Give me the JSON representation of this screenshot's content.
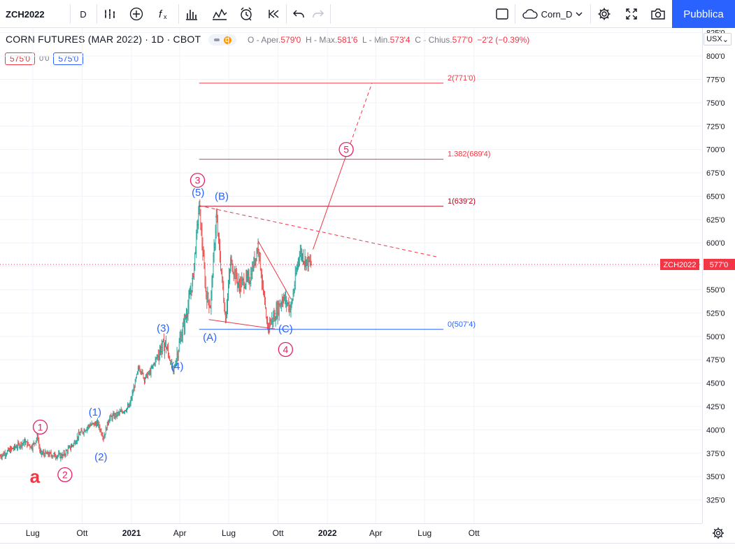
{
  "toolbar": {
    "symbol": "ZCH2022",
    "interval": "D",
    "layout_name": "Corn_D",
    "publish_label": "Pubblica",
    "icons": [
      "indicators-compare-icon",
      "add-symbol-icon",
      "fx-indicators-icon",
      "bar-style-icon",
      "templates-icon",
      "alert-icon",
      "replay-icon",
      "undo-icon",
      "redo-icon",
      "fullscreen-window-icon",
      "cloud-layout-icon",
      "settings-gear-icon",
      "fullscreen-icon",
      "camera-snapshot-icon"
    ]
  },
  "legend": {
    "title": "CORN FUTURES (MAR 2022) · 1D · CBOT",
    "badge_icon": "data-delayed-icon",
    "badge_letter": "D",
    "ohlc": [
      {
        "label": "O - Aper.",
        "value": "579'0"
      },
      {
        "label": "H - Max.",
        "value": "581'6"
      },
      {
        "label": "L - Min.",
        "value": "573'4"
      },
      {
        "label": "C - Chius.",
        "value": "577'0"
      }
    ],
    "change": "−2'2 (−0.39%)",
    "sell_price": "575'0",
    "spread": "0'0",
    "buy_price": "575'0"
  },
  "price_scale": {
    "currency": "USX",
    "ticks": [
      "825'0",
      "800'0",
      "775'0",
      "750'0",
      "725'0",
      "700'0",
      "675'0",
      "650'0",
      "625'0",
      "600'0",
      "575'0",
      "550'0",
      "525'0",
      "500'0",
      "475'0",
      "450'0",
      "425'0",
      "400'0",
      "375'0",
      "350'0",
      "325'0"
    ],
    "current_symbol": "ZCH2022",
    "current_price": "577'0"
  },
  "time_scale": {
    "labels": [
      "Lug",
      "Ott",
      "2021",
      "Apr",
      "Lug",
      "Ott",
      "2022",
      "Apr",
      "Lug",
      "Ott"
    ]
  },
  "chart_data": {
    "type": "ohlc-bar",
    "symbol": "ZCH2022",
    "ylim": [
      300,
      830
    ],
    "xlim": [
      "2020-05-01",
      "2023-11-30"
    ],
    "last_close": 577.0,
    "price_path": [
      [
        "2020-05-01",
        372
      ],
      [
        "2020-05-25",
        380
      ],
      [
        "2020-06-15",
        387
      ],
      [
        "2020-06-30",
        382
      ],
      [
        "2020-07-10",
        393
      ],
      [
        "2020-07-15",
        375
      ],
      [
        "2020-08-10",
        373
      ],
      [
        "2020-08-25",
        372
      ],
      [
        "2020-09-15",
        385
      ],
      [
        "2020-09-25",
        395
      ],
      [
        "2020-10-15",
        405
      ],
      [
        "2020-10-30",
        407
      ],
      [
        "2020-11-10",
        392
      ],
      [
        "2020-11-20",
        412
      ],
      [
        "2020-12-10",
        418
      ],
      [
        "2020-12-28",
        425
      ],
      [
        "2021-01-15",
        468
      ],
      [
        "2021-01-25",
        455
      ],
      [
        "2021-02-05",
        462
      ],
      [
        "2021-02-25",
        488
      ],
      [
        "2021-03-05",
        492
      ],
      [
        "2021-03-20",
        462
      ],
      [
        "2021-04-01",
        495
      ],
      [
        "2021-04-15",
        528
      ],
      [
        "2021-04-25",
        560
      ],
      [
        "2021-05-07",
        640
      ],
      [
        "2021-05-20",
        545
      ],
      [
        "2021-05-28",
        533
      ],
      [
        "2021-06-08",
        628
      ],
      [
        "2021-06-25",
        520
      ],
      [
        "2021-07-05",
        580
      ],
      [
        "2021-07-20",
        555
      ],
      [
        "2021-08-10",
        562
      ],
      [
        "2021-08-25",
        598
      ],
      [
        "2021-09-10",
        510
      ],
      [
        "2021-09-25",
        522
      ],
      [
        "2021-10-10",
        542
      ],
      [
        "2021-10-25",
        530
      ],
      [
        "2021-11-10",
        591
      ],
      [
        "2021-11-20",
        582
      ],
      [
        "2021-12-02",
        577
      ]
    ],
    "price_lines": [
      {
        "label": "ZCH2022",
        "value": 577.0,
        "style": "dotted",
        "color": "#f23645"
      }
    ],
    "annotations": {
      "fib_levels": [
        {
          "label": "2(771'0)",
          "value": 771.0,
          "color": "#f23645",
          "x1": "2021-05-07",
          "x2": "2022-08-05"
        },
        {
          "label": "1.382(689'4)",
          "value": 689.5,
          "color": "#f23645",
          "x1": "2021-05-07",
          "x2": "2022-08-05"
        },
        {
          "label": "1(639'2)",
          "value": 639.25,
          "color": "#b2001a",
          "x1": "2021-05-07",
          "x2": "2022-08-05"
        },
        {
          "label": "0(507'4)",
          "value": 507.5,
          "color": "#2962ff",
          "x1": "2021-05-07",
          "x2": "2022-08-05"
        }
      ],
      "lines": [
        {
          "from": [
            "2021-05-07",
            640
          ],
          "to": [
            "2022-07-25",
            585
          ],
          "color": "#f23645",
          "dash": true
        },
        {
          "from": [
            "2021-05-25",
            518
          ],
          "to": [
            "2021-09-25",
            508
          ],
          "color": "#f23645",
          "dash": false
        },
        {
          "from": [
            "2021-08-25",
            602
          ],
          "to": [
            "2021-10-25",
            540
          ],
          "color": "#f23645",
          "dash": false
        },
        {
          "from": [
            "2021-12-05",
            593
          ],
          "to": [
            "2022-02-05",
            694
          ],
          "color": "#f23645",
          "dash": false
        },
        {
          "from": [
            "2022-02-05",
            694
          ],
          "to": [
            "2022-03-25",
            771
          ],
          "color": "#f23645",
          "dash": true
        }
      ],
      "wave_labels": [
        {
          "text": "a",
          "at": [
            "2020-07-05",
            350
          ],
          "style": "bold-red"
        },
        {
          "text": "1",
          "at": [
            "2020-07-15",
            403
          ],
          "style": "red-circle"
        },
        {
          "text": "2",
          "at": [
            "2020-08-30",
            352
          ],
          "style": "red-circle"
        },
        {
          "text": "3",
          "at": [
            "2021-05-04",
            667
          ],
          "style": "red-circle"
        },
        {
          "text": "4",
          "at": [
            "2021-10-15",
            486
          ],
          "style": "red-circle"
        },
        {
          "text": "5",
          "at": [
            "2022-02-05",
            700
          ],
          "style": "red-circle"
        },
        {
          "text": "(1)",
          "at": [
            "2020-10-25",
            419
          ],
          "style": "blue"
        },
        {
          "text": "(2)",
          "at": [
            "2020-11-05",
            371
          ],
          "style": "blue"
        },
        {
          "text": "(3)",
          "at": [
            "2021-03-01",
            509
          ],
          "style": "blue"
        },
        {
          "text": "(4)",
          "at": [
            "2021-03-27",
            468
          ],
          "style": "blue"
        },
        {
          "text": "(5)",
          "at": [
            "2021-05-05",
            654
          ],
          "style": "blue"
        },
        {
          "text": "(B)",
          "at": [
            "2021-06-18",
            650
          ],
          "style": "blue"
        },
        {
          "text": "(A)",
          "at": [
            "2021-05-27",
            499
          ],
          "style": "blue"
        },
        {
          "text": "(C)",
          "at": [
            "2021-10-15",
            508
          ],
          "style": "blue"
        }
      ]
    }
  }
}
